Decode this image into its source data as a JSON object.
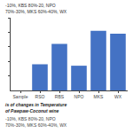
{
  "chart_data": {
    "type": "bar",
    "title": "is of changes in Temperature of Pawpaw-Coconut wine",
    "annotations": [
      "-10%, KBS 80%-20, NPO 70%-30%, MKS 60%-40%, WX",
      "-10%, KBS 80%-20, NPO 70%-30%, MKS 60%-40%, WX"
    ],
    "categories": [
      "Sample",
      "RSO",
      "RBS",
      "NPO",
      "MKS",
      "WX"
    ],
    "values": [
      0,
      1.8,
      3.2,
      1.7,
      4.1,
      3.9
    ],
    "color": "#4472C4",
    "ylim": [
      0,
      5
    ],
    "yticks": [
      1,
      2,
      3,
      4,
      5
    ],
    "grid": false,
    "tick_labels": "x"
  }
}
